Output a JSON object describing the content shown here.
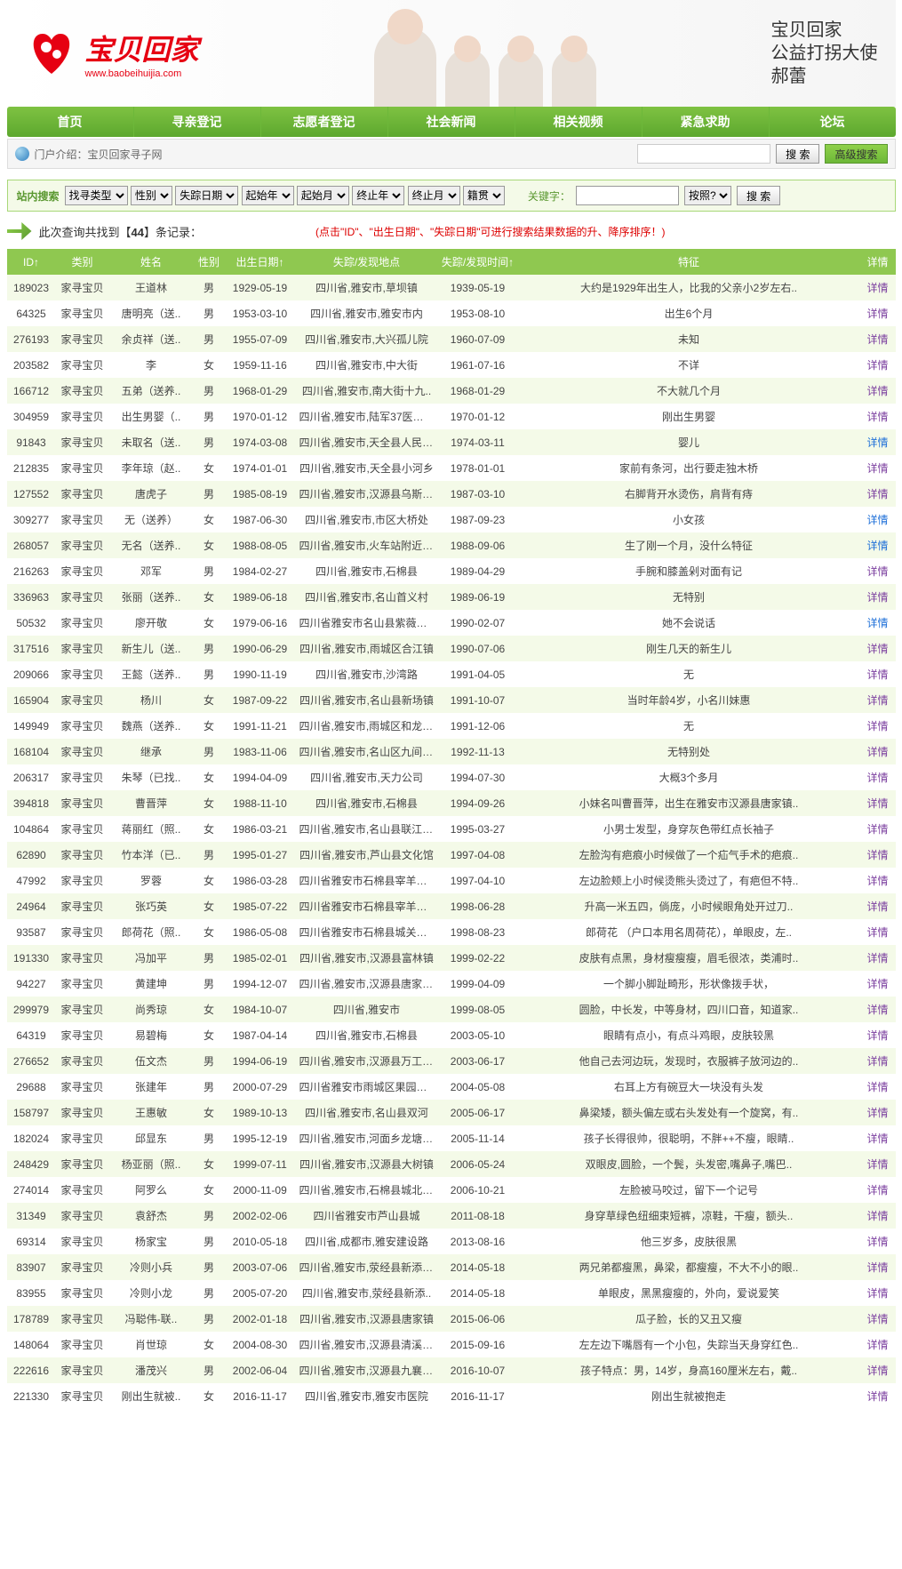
{
  "site": {
    "name_cn": "宝贝回家",
    "url": "www.baobeihuijia.com",
    "calligraphy": "宝贝回家\n公益打拐大使\n郝蕾"
  },
  "nav": [
    "首页",
    "寻亲登记",
    "志愿者登记",
    "社会新闻",
    "相关视频",
    "紧急求助",
    "论坛"
  ],
  "topSearch": {
    "intro": "门户介绍：宝贝回家寻子网",
    "btn": "搜 索",
    "adv": "高级搜索"
  },
  "filter": {
    "label": "站内搜索",
    "selects": [
      "找寻类型",
      "性别",
      "失踪日期",
      "起始年",
      "起始月",
      "终止年",
      "终止月",
      "籍贯"
    ],
    "kwLabel": "关键字：",
    "sortSel": "按照?",
    "btn": "搜 索"
  },
  "records": {
    "prefix": "此次查询共找到【",
    "count": "44",
    "suffix": "】条记录：",
    "tip": "(点击\"ID\"、\"出生日期\"、\"失踪日期\"可进行搜索结果数据的升、降序排序！)"
  },
  "columns": [
    "ID↑",
    "类别",
    "姓名",
    "性别",
    "出生日期↑",
    "失踪/发现地点",
    "失踪/发现时间↑",
    "特征",
    "详情"
  ],
  "detailText": "详情",
  "rows": [
    [
      "189023",
      "家寻宝贝",
      "王道林",
      "男",
      "1929-05-19",
      "四川省,雅安市,草坝镇",
      "1939-05-19",
      "大约是1929年出生人，比我的父亲小2岁左右..",
      "p"
    ],
    [
      "64325",
      "家寻宝贝",
      "唐明亮（送..",
      "男",
      "1953-03-10",
      "四川省,雅安市,雅安市内",
      "1953-08-10",
      "出生6个月",
      "p"
    ],
    [
      "276193",
      "家寻宝贝",
      "余贞祥（送..",
      "男",
      "1955-07-09",
      "四川省,雅安市,大兴孤儿院",
      "1960-07-09",
      "未知",
      "p"
    ],
    [
      "203582",
      "家寻宝贝",
      "李",
      "女",
      "1959-11-16",
      "四川省,雅安市,中大街",
      "1961-07-16",
      "不详",
      "p"
    ],
    [
      "166712",
      "家寻宝贝",
      "五弟（送养..",
      "男",
      "1968-01-29",
      "四川省,雅安市,南大街十九..",
      "1968-01-29",
      "不大就几个月",
      "p"
    ],
    [
      "304959",
      "家寻宝贝",
      "出生男婴（..",
      "男",
      "1970-01-12",
      "四川省,雅安市,陆军37医院妇..",
      "1970-01-12",
      "刚出生男婴",
      "p"
    ],
    [
      "91843",
      "家寻宝贝",
      "未取名（送..",
      "男",
      "1974-03-08",
      "四川省,雅安市,天全县人民医..",
      "1974-03-11",
      "婴儿",
      "b"
    ],
    [
      "212835",
      "家寻宝贝",
      "李年琼（赵..",
      "女",
      "1974-01-01",
      "四川省,雅安市,天全县小河乡",
      "1978-01-01",
      "家前有条河，出行要走独木桥",
      "p"
    ],
    [
      "127552",
      "家寻宝贝",
      "唐虎子",
      "男",
      "1985-08-19",
      "四川省,雅安市,汉源县乌斯河..",
      "1987-03-10",
      "右脚背开水烫伤，肩背有痔",
      "p"
    ],
    [
      "309277",
      "家寻宝贝",
      "无（送养）",
      "女",
      "1987-06-30",
      "四川省,雅安市,市区大桥处",
      "1987-09-23",
      "小女孩",
      "b"
    ],
    [
      "268057",
      "家寻宝贝",
      "无名（送养..",
      "女",
      "1988-08-05",
      "四川省,雅安市,火车站附近桥..",
      "1988-09-06",
      "生了刚一个月，没什么特征",
      "b"
    ],
    [
      "216263",
      "家寻宝贝",
      "邓军",
      "男",
      "1984-02-27",
      "四川省,雅安市,石棉县",
      "1989-04-29",
      "手腕和膝盖剁对面有记",
      "p"
    ],
    [
      "336963",
      "家寻宝贝",
      "张丽（送养..",
      "女",
      "1989-06-18",
      "四川省,雅安市,名山首义村",
      "1989-06-19",
      "无特别",
      "p"
    ],
    [
      "50532",
      "家寻宝贝",
      "廖开敬",
      "女",
      "1979-06-16",
      "四川省雅安市名山县紫薇街51..",
      "1990-02-07",
      "她不会说话",
      "b"
    ],
    [
      "317516",
      "家寻宝贝",
      "新生儿（送..",
      "男",
      "1990-06-29",
      "四川省,雅安市,雨城区合江镇",
      "1990-07-06",
      "刚生几天的新生儿",
      "p"
    ],
    [
      "209066",
      "家寻宝贝",
      "王懿（送养..",
      "男",
      "1990-11-19",
      "四川省,雅安市,沙湾路",
      "1991-04-05",
      "无",
      "p"
    ],
    [
      "165904",
      "家寻宝贝",
      "杨川",
      "女",
      "1987-09-22",
      "四川省,雅安市,名山县新场镇",
      "1991-10-07",
      "当时年龄4岁，小名川妹惠",
      "p"
    ],
    [
      "149949",
      "家寻宝贝",
      "魏燕（送养..",
      "女",
      "1991-11-21",
      "四川省,雅安市,雨城区和龙乡..",
      "1991-12-06",
      "无",
      "p"
    ],
    [
      "168104",
      "家寻宝贝",
      "继承",
      "男",
      "1983-11-06",
      "四川省,雅安市,名山区九间碾..",
      "1992-11-13",
      "无特别处",
      "p"
    ],
    [
      "206317",
      "家寻宝贝",
      "朱琴（已找..",
      "女",
      "1994-04-09",
      "四川省,雅安市,天力公司",
      "1994-07-30",
      "大概3个多月",
      "p"
    ],
    [
      "394818",
      "家寻宝贝",
      "曹晋萍",
      "女",
      "1988-11-10",
      "四川省,雅安市,石棉县",
      "1994-09-26",
      "小妹名叫曹晋萍，出生在雅安市汉源县唐家镇..",
      "p"
    ],
    [
      "104864",
      "家寻宝贝",
      "蒋丽红（照..",
      "女",
      "1986-03-21",
      "四川省,雅安市,名山县联江乡..",
      "1995-03-27",
      "小男士发型，身穿灰色带红点长袖子",
      "p"
    ],
    [
      "62890",
      "家寻宝贝",
      "竹本洋（已..",
      "男",
      "1995-01-27",
      "四川省,雅安市,芦山县文化馆",
      "1997-04-08",
      "左脸沟有疤痕小时候做了一个疝气手术的疤痕..",
      "p"
    ],
    [
      "47992",
      "家寻宝贝",
      "罗蓉",
      "女",
      "1986-03-28",
      "四川省雅安市石棉县宰羊乡碾..",
      "1997-04-10",
      "左边脸颊上小时候烫熊头烫过了，有疤但不特..",
      "p"
    ],
    [
      "24964",
      "家寻宝贝",
      "张巧英",
      "女",
      "1985-07-22",
      "四川省雅安市石棉县宰羊乡马..",
      "1998-06-28",
      "升高一米五四，倘庞，小时候眼角处开过刀..",
      "p"
    ],
    [
      "93587",
      "家寻宝贝",
      "郎荷花（照..",
      "女",
      "1986-05-08",
      "四川省雅安市石棉县城关镇大..",
      "1998-08-23",
      "郎荷花 （户口本用名周荷花），单眼皮，左..",
      "p"
    ],
    [
      "191330",
      "家寻宝贝",
      "冯加平",
      "男",
      "1985-02-01",
      "四川省,雅安市,汉源县富林镇",
      "1999-02-22",
      "皮肤有点黑，身材瘦瘦瘦，眉毛很浓，类浦时..",
      "p"
    ],
    [
      "94227",
      "家寻宝贝",
      "黄建坤",
      "男",
      "1994-12-07",
      "四川省,雅安市,汉源县唐家乡..",
      "1999-04-09",
      "一个脚小脚趾畸形，形状像拨手状，",
      "p"
    ],
    [
      "299979",
      "家寻宝贝",
      "尚秀琼",
      "女",
      "1984-10-07",
      "四川省,雅安市",
      "1999-08-05",
      "圆脸，中长发，中等身材，四川口音，知道家..",
      "p"
    ],
    [
      "64319",
      "家寻宝贝",
      "易碧梅",
      "女",
      "1987-04-14",
      "四川省,雅安市,石棉县",
      "2003-05-10",
      "眼睛有点小，有点斗鸡眼，皮肤较黑",
      "p"
    ],
    [
      "276652",
      "家寻宝贝",
      "伍文杰",
      "男",
      "1994-06-19",
      "四川省,雅安市,汉源县万工乡..",
      "2003-06-17",
      "他自己去河边玩，发现时，衣服裤子放河边的..",
      "p"
    ],
    [
      "29688",
      "家寻宝贝",
      "张建年",
      "男",
      "2000-07-29",
      "四川省雅安市雨城区果园路22..",
      "2004-05-08",
      "右耳上方有碗豆大一块没有头发",
      "p"
    ],
    [
      "158797",
      "家寻宝贝",
      "王惠敏",
      "女",
      "1989-10-13",
      "四川省,雅安市,名山县双河",
      "2005-06-17",
      "鼻梁矮，额头偏左或右头发处有一个旋窝，有..",
      "p"
    ],
    [
      "182024",
      "家寻宝贝",
      "邱显东",
      "男",
      "1995-12-19",
      "四川省,雅安市,河面乡龙塘村..",
      "2005-11-14",
      "孩子长得很帅，很聪明，不胖++不瘦，眼睛..",
      "p"
    ],
    [
      "248429",
      "家寻宝贝",
      "杨亚丽（照..",
      "女",
      "1999-07-11",
      "四川省,雅安市,汉源县大树镇",
      "2006-05-24",
      "双眼皮,圆脸，一个鬓，头发密,嘴鼻子,嘴巴..",
      "p"
    ],
    [
      "274014",
      "家寻宝贝",
      "阿罗么",
      "女",
      "2000-11-09",
      "四川省,雅安市,石棉县城北中..",
      "2006-10-21",
      "左脸被马咬过，留下一个记号",
      "p"
    ],
    [
      "31349",
      "家寻宝贝",
      "袁舒杰",
      "男",
      "2002-02-06",
      "四川省雅安市芦山县城",
      "2011-08-18",
      "身穿草绿色纽细束短裤，凉鞋，干瘦，额头..",
      "p"
    ],
    [
      "69314",
      "家寻宝贝",
      "杨家宝",
      "男",
      "2010-05-18",
      "四川省,成都市,雅安建设路",
      "2013-08-16",
      "他三岁多，皮肤很黑",
      "p"
    ],
    [
      "83907",
      "家寻宝贝",
      "冷则小兵",
      "男",
      "2003-07-06",
      "四川省,雅安市,荥经县新添乡..",
      "2014-05-18",
      "两兄弟都瘦黑，鼻梁，都瘦瘦，不大不小的眼..",
      "p"
    ],
    [
      "83955",
      "家寻宝贝",
      "冷则小龙",
      "男",
      "2005-07-20",
      "四川省,雅安市,荥经县新添..",
      "2014-05-18",
      "单眼皮，黑黑瘦瘦的，外向，爱说爱笑",
      "p"
    ],
    [
      "178789",
      "家寻宝贝",
      "冯聪伟-联..",
      "男",
      "2002-01-18",
      "四川省,雅安市,汉源县唐家镇",
      "2015-06-06",
      "瓜子脸，长的又丑又瘦",
      "p"
    ],
    [
      "148064",
      "家寻宝贝",
      "肖世琼",
      "女",
      "2004-08-30",
      "四川省,雅安市,汉源县清溪镇..",
      "2015-09-16",
      "左左边下嘴唇有一个小包，失踪当天身穿红色..",
      "p"
    ],
    [
      "222616",
      "家寻宝贝",
      "潘茂兴",
      "男",
      "2002-06-04",
      "四川省,雅安市,汉源县九襄镇..",
      "2016-10-07",
      "孩子特点：男，14岁，身高160厘米左右，戴..",
      "p"
    ],
    [
      "221330",
      "家寻宝贝",
      "刚出生就被..",
      "女",
      "2016-11-17",
      "四川省,雅安市,雅安市医院",
      "2016-11-17",
      "刚出生就被抱走",
      "p"
    ]
  ]
}
